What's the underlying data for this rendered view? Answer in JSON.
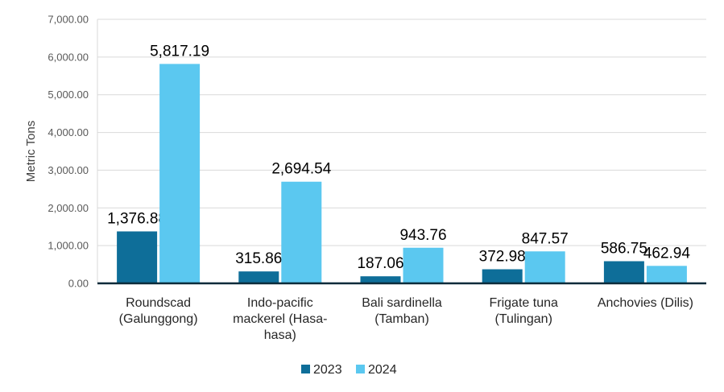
{
  "chart_data": {
    "type": "bar",
    "title": "",
    "xlabel": "",
    "ylabel": "Metric Tons",
    "ylim": [
      0,
      7000
    ],
    "yticks": [
      "0.00",
      "1,000.00",
      "2,000.00",
      "3,000.00",
      "4,000.00",
      "5,000.00",
      "6,000.00",
      "7,000.00"
    ],
    "grid": true,
    "legend_position": "bottom",
    "categories": [
      [
        "Roundscad",
        "(Galunggong)"
      ],
      [
        "Indo-pacific",
        "mackerel (Hasa-",
        "hasa)"
      ],
      [
        "Bali sardinella",
        "(Tamban)"
      ],
      [
        "Frigate tuna",
        "(Tulingan)"
      ],
      [
        "Anchovies (Dilis)"
      ]
    ],
    "series": [
      {
        "name": "2023",
        "color": "#0E6E99",
        "values": [
          1376.88,
          315.86,
          187.06,
          372.98,
          586.75
        ],
        "labels": [
          "1,376.88",
          "315.86",
          "187.06",
          "372.98",
          "586.75"
        ]
      },
      {
        "name": "2024",
        "color": "#5BC8F0",
        "values": [
          5817.19,
          2694.54,
          943.76,
          847.57,
          462.94
        ],
        "labels": [
          "5,817.19",
          "2,694.54",
          "943.76",
          "847.57",
          "462.94"
        ]
      }
    ]
  }
}
